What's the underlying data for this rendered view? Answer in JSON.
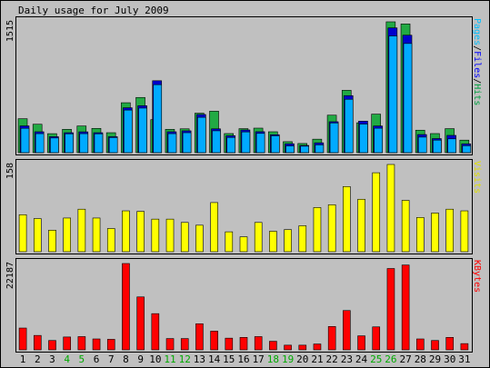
{
  "chart_data": {
    "type": "bar",
    "title": "Daily usage for July 2009",
    "categories": [
      "1",
      "2",
      "3",
      "4",
      "5",
      "6",
      "7",
      "8",
      "9",
      "10",
      "11",
      "12",
      "13",
      "14",
      "15",
      "16",
      "17",
      "18",
      "19",
      "20",
      "21",
      "22",
      "23",
      "24",
      "25",
      "26",
      "27",
      "28",
      "29",
      "30",
      "31"
    ],
    "weekend_days": [
      "4",
      "5",
      "11",
      "12",
      "18",
      "19",
      "25",
      "26"
    ],
    "panels": [
      {
        "name": "hits",
        "ymax": 1515,
        "ymax_label": "1515",
        "right_label": [
          {
            "text": "Pages",
            "color": "#00bfff"
          },
          {
            "text": "/",
            "color": "#000000"
          },
          {
            "text": "Files",
            "color": "#0000ff"
          },
          {
            "text": "/",
            "color": "#000000"
          },
          {
            "text": "Hits",
            "color": "#00a040"
          }
        ],
        "series": [
          {
            "name": "Hits",
            "color": "#22aa44",
            "values": [
              393,
              329,
              220,
              270,
              309,
              281,
              231,
              578,
              639,
              382,
              270,
              276,
              457,
              480,
              221,
              278,
              284,
              242,
              127,
              106,
              156,
              434,
              722,
              346,
              446,
              1515,
              1490,
              260,
              221,
              278,
              145
            ]
          },
          {
            "name": "Files",
            "color": "#0000cc",
            "values": [
              310,
              242,
              185,
              231,
              241,
              231,
              185,
              520,
              544,
              833,
              242,
              253,
              442,
              276,
              196,
              263,
              243,
              208,
              103,
              84,
              114,
              358,
              660,
              365,
              309,
              1445,
              1360,
              210,
              163,
              200,
              102
            ]
          },
          {
            "name": "Pages",
            "color": "#00aaff",
            "values": [
              282,
              220,
              170,
              218,
              220,
              218,
              175,
              493,
              516,
              787,
              220,
              231,
              409,
              253,
              176,
              240,
              223,
              195,
              78,
              75,
              90,
              344,
              618,
              331,
              283,
              1351,
              1264,
              180,
              145,
              160,
              80
            ]
          }
        ]
      },
      {
        "name": "visits",
        "ymax": 158,
        "ymax_label": "158",
        "right_label": [
          {
            "text": "Visits",
            "color": "#e0e000"
          }
        ],
        "series": [
          {
            "name": "Visits",
            "color": "#ffff00",
            "values": [
              67,
              60,
              39,
              61,
              77,
              61,
              42,
              74,
              73,
              59,
              59,
              53,
              48,
              89,
              36,
              27,
              53,
              37,
              40,
              47,
              80,
              85,
              118,
              95,
              143,
              158,
              93,
              62,
              70,
              77,
              74
            ]
          }
        ]
      },
      {
        "name": "kbytes",
        "ymax": 22187,
        "ymax_label": "22187",
        "right_label": [
          {
            "text": "KBytes",
            "color": "#ff0000"
          }
        ],
        "series": [
          {
            "name": "KBytes",
            "color": "#ff0000",
            "values": [
              5600,
              3700,
              2400,
              3300,
              3400,
              2800,
              2700,
              22187,
              13600,
              9300,
              2900,
              2900,
              6700,
              4800,
              3000,
              3200,
              3400,
              2200,
              1200,
              1200,
              1500,
              6000,
              10100,
              3600,
              5900,
              20900,
              21800,
              2800,
              2400,
              3200,
              1600
            ]
          }
        ]
      }
    ]
  }
}
